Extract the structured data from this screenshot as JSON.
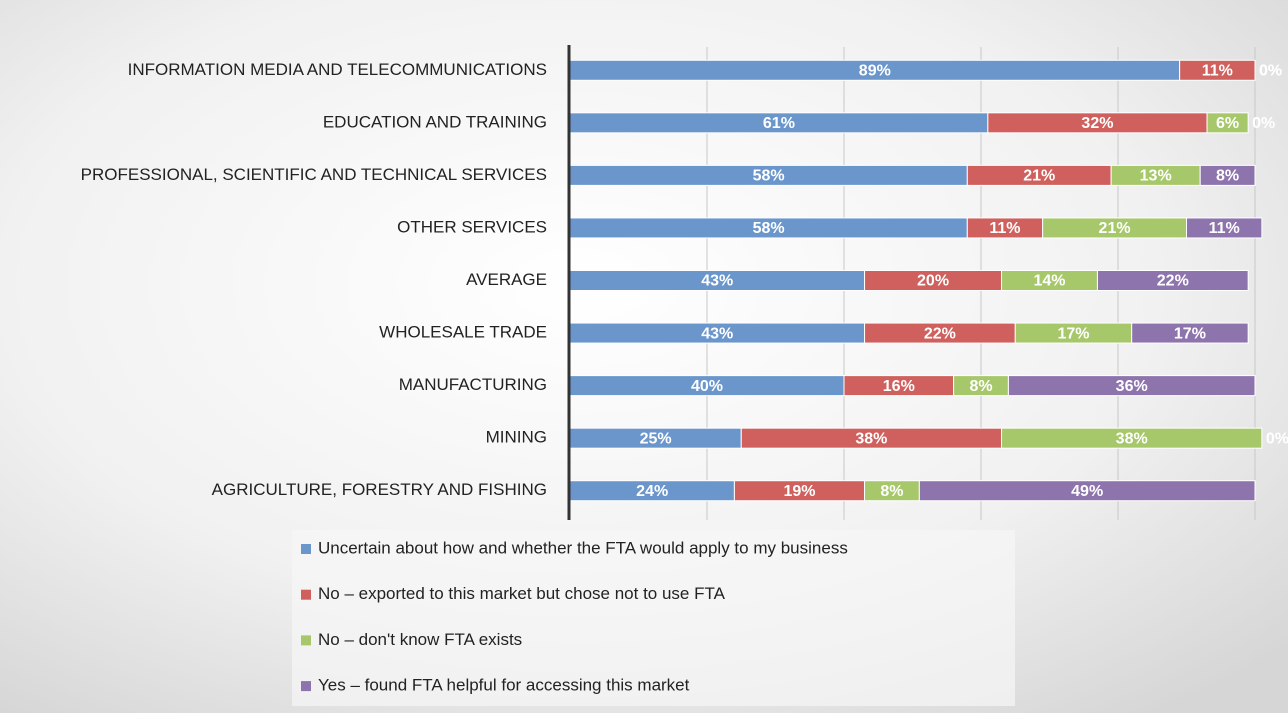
{
  "chart_data": {
    "type": "stacked-barh",
    "categories": [
      "INFORMATION MEDIA AND TELECOMMUNICATIONS",
      "EDUCATION AND TRAINING",
      "PROFESSIONAL, SCIENTIFIC AND TECHNICAL SERVICES",
      "OTHER SERVICES",
      "AVERAGE",
      "WHOLESALE TRADE",
      "MANUFACTURING",
      "MINING",
      "AGRICULTURE, FORESTRY AND FISHING"
    ],
    "series": [
      {
        "name": "Uncertain about how and whether the FTA would apply to my business",
        "color": "#6a96cc",
        "values": [
          89,
          61,
          58,
          58,
          43,
          43,
          40,
          25,
          24
        ],
        "value_labels": [
          "89%",
          "61%",
          "58%",
          "58%",
          "43%",
          "43%",
          "40%",
          "25%",
          "24%"
        ]
      },
      {
        "name": "No – exported to this market but chose not to use FTA",
        "color": "#cf605d",
        "values": [
          11,
          32,
          21,
          11,
          20,
          22,
          16,
          38,
          19
        ],
        "value_labels": [
          "11%",
          "32%",
          "21%",
          "11%",
          "20%",
          "22%",
          "16%",
          "38%",
          "19%"
        ]
      },
      {
        "name": "No – don't know FTA exists",
        "color": "#a6c86a",
        "values": [
          0,
          6,
          13,
          21,
          14,
          17,
          8,
          38,
          8
        ],
        "value_labels": [
          "0%",
          "6%",
          "13%",
          "21%",
          "14%",
          "17%",
          "8%",
          "38%",
          "8%"
        ]
      },
      {
        "name": "Yes – found FTA helpful for accessing this market",
        "color": "#8e74ad",
        "values": [
          0,
          0,
          8,
          11,
          22,
          17,
          36,
          0,
          49
        ],
        "value_labels": [
          "0%",
          "0%",
          "8%",
          "11%",
          "22%",
          "17%",
          "36%",
          "0%",
          "49%"
        ]
      }
    ],
    "xlim": [
      0,
      100
    ],
    "xticks": [
      0,
      20,
      40,
      60,
      80,
      100
    ],
    "grid": true
  }
}
